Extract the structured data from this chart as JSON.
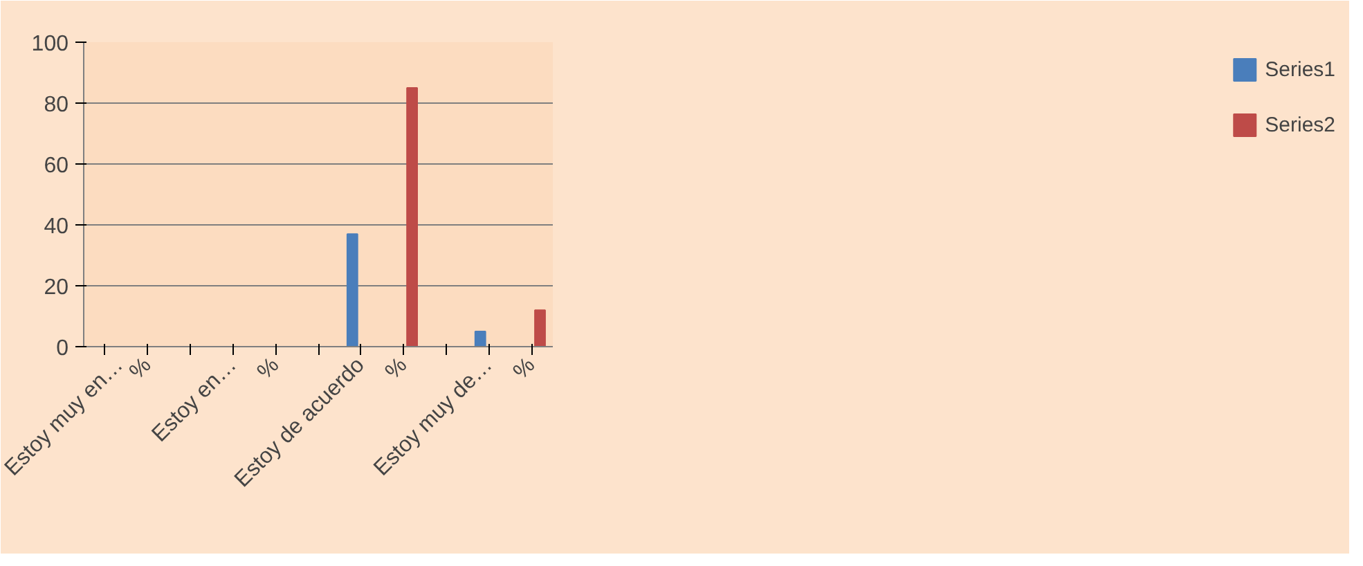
{
  "chart_data": {
    "type": "bar",
    "categories": [
      "Estoy muy en…",
      "%",
      null,
      "Estoy en…",
      "%",
      null,
      "Estoy de acuerdo",
      "%",
      null,
      "Estoy muy de…",
      "%"
    ],
    "series": [
      {
        "name": "Series1",
        "color": "#4a7ebb",
        "values": [
          0,
          null,
          null,
          0,
          null,
          null,
          37,
          null,
          null,
          5,
          null
        ]
      },
      {
        "name": "Series2",
        "color": "#be4b48",
        "values": [
          null,
          0,
          null,
          null,
          0,
          null,
          null,
          85,
          null,
          null,
          12
        ]
      }
    ],
    "ylim": [
      0,
      100
    ],
    "yticks": [
      0,
      20,
      40,
      60,
      80,
      100
    ],
    "grid": "y",
    "legend": "right"
  }
}
